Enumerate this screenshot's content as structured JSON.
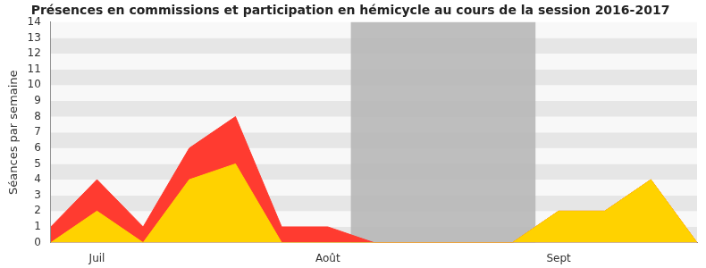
{
  "chart_data": {
    "type": "area",
    "title": "Présences en commissions et participation en hémicycle au cours de la session 2016-2017",
    "y_label": "Séances par semaine",
    "categories": [
      null,
      "Juil",
      null,
      null,
      null,
      null,
      "Août",
      null,
      null,
      null,
      null,
      "Sept",
      null,
      null,
      null
    ],
    "series": [
      {
        "name": "Présences en commissions",
        "color": "#ff3b30",
        "values": [
          1,
          4,
          1,
          6,
          8,
          1,
          1,
          0,
          0,
          0,
          0,
          2,
          2,
          4,
          0
        ]
      },
      {
        "name": "Participation en hémicycle",
        "color": "#ffd200",
        "values": [
          0,
          2,
          0,
          4,
          5,
          0,
          0,
          0,
          0,
          0,
          0,
          2,
          2,
          4,
          0
        ]
      }
    ],
    "highlight": {
      "from": 6.5,
      "to": 10.5,
      "color": "#b4b4b4"
    },
    "ylim": [
      0,
      14
    ],
    "yticks": [
      0,
      1,
      2,
      3,
      4,
      5,
      6,
      7,
      8,
      9,
      10,
      11,
      12,
      13,
      14
    ],
    "grid": true
  }
}
